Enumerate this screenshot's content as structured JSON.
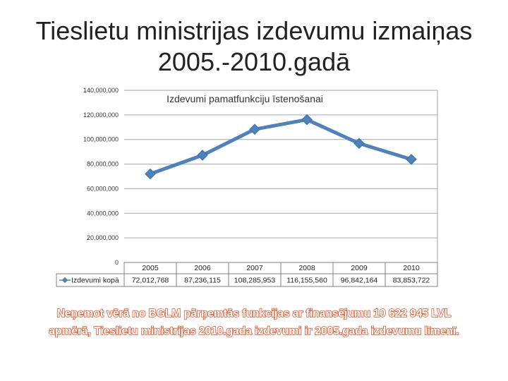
{
  "slide": {
    "title_line1": "Tieslietu ministrijas izdevumu izmaiņas",
    "title_line2": "2005.-2010.gadā",
    "footnote_line1": "Neņemot vērā no BGLM pārņemtās funkcijas ar finansējumu 10 622 945 LVL",
    "footnote_line2": "apmērā, Tieslietu ministrijas 2010.gada izdevumi ir 2005.gada izdevumu līmenī."
  },
  "chart_data": {
    "type": "line",
    "title": "Izdevumi pamatfunkciju īstenošanai",
    "categories": [
      "2005",
      "2006",
      "2007",
      "2008",
      "2009",
      "2010"
    ],
    "series": [
      {
        "name": "Izdevumi kopā",
        "values": [
          72012768,
          87236115,
          108285953,
          116155560,
          96842164,
          83853722
        ],
        "value_labels": [
          "72,012,768",
          "87,236,115",
          "108,285,953",
          "116,155,560",
          "96,842,164",
          "83,853,722"
        ]
      }
    ],
    "ylim": [
      0,
      140000000
    ],
    "ytick_values": [
      0,
      20000000,
      40000000,
      60000000,
      80000000,
      100000000,
      120000000,
      140000000
    ],
    "ytick_labels": [
      "0",
      "20,000,000",
      "40,000,000",
      "60,000,000",
      "80,000,000",
      "100,000,000",
      "120,000,000",
      "140,000,000"
    ],
    "grid": true,
    "legend": "data-table",
    "line_color": "#4f81bd"
  }
}
